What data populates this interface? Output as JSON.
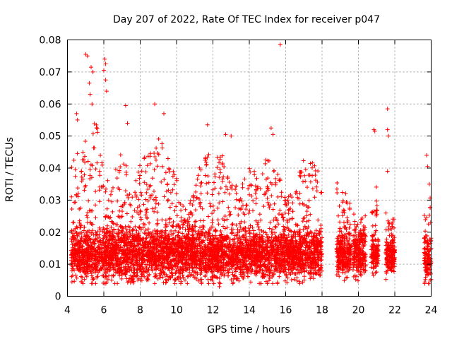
{
  "chart_data": {
    "type": "scatter",
    "title": "Day 207 of 2022, Rate Of TEC Index for receiver p047",
    "xlabel": "GPS time / hours",
    "ylabel": "ROTI / TECUs",
    "xlim": [
      4,
      24
    ],
    "ylim": [
      0,
      0.08
    ],
    "xticks": [
      "4",
      "6",
      "8",
      "10",
      "12",
      "14",
      "16",
      "18",
      "20",
      "22",
      "24"
    ],
    "yticks": [
      "0",
      "0.01",
      "0.02",
      "0.03",
      "0.04",
      "0.05",
      "0.06",
      "0.07",
      "0.08"
    ],
    "grid": true,
    "marker": "+",
    "series": [
      {
        "name": "ROTI",
        "color": "#ff0000",
        "segments": [
          {
            "x_start": 4.2,
            "x_end": 18.0,
            "median": 0.013,
            "spread": 0.007
          },
          {
            "x_start": 18.8,
            "x_end": 19.6,
            "median": 0.013,
            "spread": 0.006
          },
          {
            "x_start": 19.7,
            "x_end": 20.4,
            "median": 0.013,
            "spread": 0.006
          },
          {
            "x_start": 20.7,
            "x_end": 21.1,
            "median": 0.013,
            "spread": 0.005
          },
          {
            "x_start": 21.5,
            "x_end": 22.0,
            "median": 0.012,
            "spread": 0.005
          },
          {
            "x_start": 23.6,
            "x_end": 24.0,
            "median": 0.012,
            "spread": 0.006
          }
        ],
        "notable_points": [
          {
            "x": 5.0,
            "y": 0.0755
          },
          {
            "x": 5.1,
            "y": 0.075
          },
          {
            "x": 5.3,
            "y": 0.0715
          },
          {
            "x": 5.4,
            "y": 0.07
          },
          {
            "x": 5.2,
            "y": 0.0665
          },
          {
            "x": 5.25,
            "y": 0.063
          },
          {
            "x": 5.35,
            "y": 0.06
          },
          {
            "x": 6.05,
            "y": 0.074
          },
          {
            "x": 6.1,
            "y": 0.0725
          },
          {
            "x": 6.0,
            "y": 0.0705
          },
          {
            "x": 6.1,
            "y": 0.0675
          },
          {
            "x": 6.15,
            "y": 0.064
          },
          {
            "x": 4.5,
            "y": 0.057
          },
          {
            "x": 4.55,
            "y": 0.055
          },
          {
            "x": 7.2,
            "y": 0.0595
          },
          {
            "x": 7.3,
            "y": 0.054
          },
          {
            "x": 8.8,
            "y": 0.06
          },
          {
            "x": 9.3,
            "y": 0.057
          },
          {
            "x": 11.7,
            "y": 0.0535
          },
          {
            "x": 12.7,
            "y": 0.0505
          },
          {
            "x": 13.0,
            "y": 0.05
          },
          {
            "x": 15.7,
            "y": 0.0785
          },
          {
            "x": 15.2,
            "y": 0.0525
          },
          {
            "x": 15.3,
            "y": 0.0505
          },
          {
            "x": 20.85,
            "y": 0.052
          },
          {
            "x": 20.9,
            "y": 0.0515
          },
          {
            "x": 21.6,
            "y": 0.0585
          },
          {
            "x": 21.6,
            "y": 0.052
          },
          {
            "x": 21.65,
            "y": 0.05
          },
          {
            "x": 21.6,
            "y": 0.039
          },
          {
            "x": 23.75,
            "y": 0.044
          },
          {
            "x": 23.8,
            "y": 0.0405
          },
          {
            "x": 23.9,
            "y": 0.035
          },
          {
            "x": 4.8,
            "y": 0.0045
          },
          {
            "x": 6.05,
            "y": 0.004
          },
          {
            "x": 12.35,
            "y": 0.003
          },
          {
            "x": 9.9,
            "y": 0.005
          }
        ],
        "envelope": [
          {
            "x": 4.5,
            "y_max": 0.045
          },
          {
            "x": 5.0,
            "y_max": 0.05
          },
          {
            "x": 5.5,
            "y_max": 0.055
          },
          {
            "x": 6.0,
            "y_max": 0.052
          },
          {
            "x": 6.5,
            "y_max": 0.035
          },
          {
            "x": 7.0,
            "y_max": 0.052
          },
          {
            "x": 7.5,
            "y_max": 0.03
          },
          {
            "x": 8.0,
            "y_max": 0.042
          },
          {
            "x": 8.5,
            "y_max": 0.046
          },
          {
            "x": 9.0,
            "y_max": 0.053
          },
          {
            "x": 9.5,
            "y_max": 0.044
          },
          {
            "x": 10.0,
            "y_max": 0.038
          },
          {
            "x": 10.5,
            "y_max": 0.027
          },
          {
            "x": 11.0,
            "y_max": 0.033
          },
          {
            "x": 11.5,
            "y_max": 0.048
          },
          {
            "x": 12.0,
            "y_max": 0.042
          },
          {
            "x": 12.5,
            "y_max": 0.047
          },
          {
            "x": 13.0,
            "y_max": 0.04
          },
          {
            "x": 13.5,
            "y_max": 0.034
          },
          {
            "x": 14.0,
            "y_max": 0.041
          },
          {
            "x": 14.5,
            "y_max": 0.038
          },
          {
            "x": 15.0,
            "y_max": 0.044
          },
          {
            "x": 15.5,
            "y_max": 0.041
          },
          {
            "x": 16.0,
            "y_max": 0.03
          },
          {
            "x": 16.5,
            "y_max": 0.034
          },
          {
            "x": 17.0,
            "y_max": 0.043
          },
          {
            "x": 17.5,
            "y_max": 0.042
          },
          {
            "x": 18.0,
            "y_max": 0.037
          },
          {
            "x": 19.0,
            "y_max": 0.036
          },
          {
            "x": 19.5,
            "y_max": 0.03
          },
          {
            "x": 20.0,
            "y_max": 0.022
          },
          {
            "x": 21.0,
            "y_max": 0.036
          },
          {
            "x": 21.7,
            "y_max": 0.024
          },
          {
            "x": 23.9,
            "y_max": 0.031
          }
        ]
      }
    ]
  }
}
